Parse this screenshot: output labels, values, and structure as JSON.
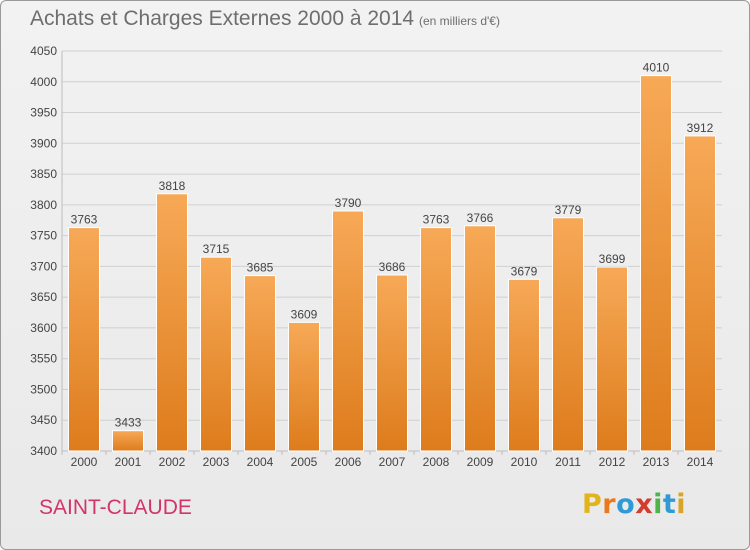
{
  "header": {
    "title": "Achats et Charges Externes 2000 à 2014",
    "unit": "(en milliers d'€)"
  },
  "footer": {
    "place": "SAINT-CLAUDE",
    "logo": {
      "letters": [
        "P",
        "r",
        "o",
        "x",
        "i",
        "t",
        "i"
      ],
      "colors": [
        "#e2b31a",
        "#e87a1d",
        "#2f9bd6",
        "#d23b2e",
        "#4db34a",
        "#2f9bd6",
        "#d8a624"
      ]
    }
  },
  "colors": {
    "bar_top": "#f7a957",
    "bar_bottom": "#dd7c1c",
    "grid": "#d0d0d0",
    "axis_text": "#444444",
    "title": "#6e6e6e",
    "place": "#d2356b"
  },
  "chart_data": {
    "type": "bar",
    "categories": [
      "2000",
      "2001",
      "2002",
      "2003",
      "2004",
      "2005",
      "2006",
      "2007",
      "2008",
      "2009",
      "2010",
      "2011",
      "2012",
      "2013",
      "2014"
    ],
    "values": [
      3763,
      3433,
      3818,
      3715,
      3685,
      3609,
      3790,
      3686,
      3763,
      3766,
      3679,
      3779,
      3699,
      4010,
      3912
    ],
    "yticks": [
      3400,
      3450,
      3500,
      3550,
      3600,
      3650,
      3700,
      3750,
      3800,
      3850,
      3900,
      3950,
      4000,
      4050
    ],
    "ylim": [
      3400,
      4050
    ],
    "grid": true,
    "data_labels": true
  }
}
